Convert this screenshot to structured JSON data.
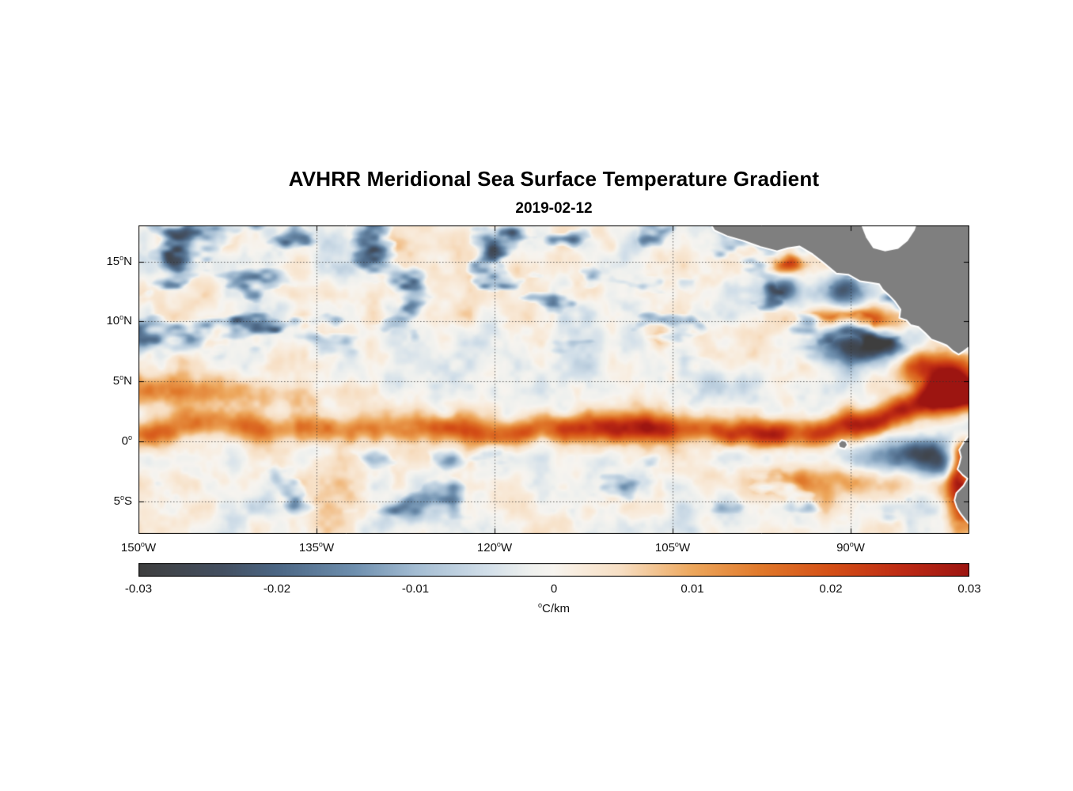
{
  "title": "AVHRR Meridional Sea Surface Temperature Gradient",
  "date": "2019-02-12",
  "chart_data": {
    "type": "heatmap",
    "title": "AVHRR Meridional Sea Surface Temperature Gradient",
    "subtitle": "2019-02-12",
    "lon_range": [
      -150,
      -80
    ],
    "lat_range": [
      -7.7,
      18
    ],
    "x_ticks": [
      {
        "lon": -150,
        "num": "150",
        "sup": "o",
        "hem": "W"
      },
      {
        "lon": -135,
        "num": "135",
        "sup": "o",
        "hem": "W"
      },
      {
        "lon": -120,
        "num": "120",
        "sup": "o",
        "hem": "W"
      },
      {
        "lon": -105,
        "num": "105",
        "sup": "o",
        "hem": "W"
      },
      {
        "lon": -90,
        "num": "90",
        "sup": "o",
        "hem": "W"
      }
    ],
    "y_ticks": [
      {
        "lat": 15,
        "num": "15",
        "sup": "o",
        "hem": "N"
      },
      {
        "lat": 10,
        "num": "10",
        "sup": "o",
        "hem": "N"
      },
      {
        "lat": 5,
        "num": "5",
        "sup": "o",
        "hem": "N"
      },
      {
        "lat": 0,
        "num": "0",
        "sup": "o",
        "hem": ""
      },
      {
        "lat": -5,
        "num": "5",
        "sup": "o",
        "hem": "S"
      }
    ],
    "grid": {
      "style": "dotted",
      "color": "rgba(45,45,45,0.75)"
    },
    "colorbar": {
      "min": -0.03,
      "max": 0.03,
      "ticks": [
        -0.03,
        -0.02,
        -0.01,
        0,
        0.01,
        0.02,
        0.03
      ],
      "tick_labels": [
        "-0.03",
        "-0.02",
        "-0.01",
        "0",
        "0.01",
        "0.02",
        "0.03"
      ],
      "label_sup": "o",
      "label_text": "C/km"
    },
    "colormap": [
      [
        0.0,
        "#3e3e3e"
      ],
      [
        0.1,
        "#434f60"
      ],
      [
        0.1667,
        "#4b6684"
      ],
      [
        0.26,
        "#6e8fae"
      ],
      [
        0.3333,
        "#a3bcd2"
      ],
      [
        0.42,
        "#d2dfe9"
      ],
      [
        0.47,
        "#eef0ee"
      ],
      [
        0.5,
        "#f7f4ef"
      ],
      [
        0.53,
        "#f8ecdd"
      ],
      [
        0.58,
        "#f7dfc4"
      ],
      [
        0.6667,
        "#eda75c"
      ],
      [
        0.75,
        "#e0782a"
      ],
      [
        0.8333,
        "#d44f16"
      ],
      [
        0.92,
        "#bd2a14"
      ],
      [
        1.0,
        "#9d1511"
      ]
    ],
    "colors": {
      "land": "#7f7f7f",
      "coastline": "#ffffff",
      "axis": "#000000",
      "background": "#ffffff"
    },
    "field": {
      "seed": 7,
      "mottle": {
        "amp": 0.007,
        "scale": 0.5
      },
      "mottle2": {
        "amp": 0.005,
        "scale_lon": 0.18,
        "scale_lat": 0.26
      },
      "north_blue": {
        "lat_start": 6,
        "lat_full": 9.5,
        "threshold": 0.56,
        "gain": 0.034,
        "scale_lon": 0.3,
        "scale_lat": 0.55
      },
      "south_blue": {
        "threshold": 0.6,
        "gain": 0.022,
        "scale_lon": 0.3,
        "scale_lat": 0.5
      },
      "equator_band": {
        "center": 1.0,
        "meander": 1.0,
        "meander_scale": 0.16,
        "sigma": 0.8,
        "amp_west": 0.015,
        "amp_east": 0.024,
        "ramp": [
          -128,
          -100
        ],
        "rise": 2.6,
        "rise_range": [
          -90,
          -80
        ]
      },
      "west_band": {
        "lat": 3.9,
        "amp": 0.012,
        "sigma": 0.95,
        "fade": [
          -150,
          -119
        ]
      },
      "blobs": [
        [
          -95.2,
          14.8,
          0.02,
          0.9,
          0.55
        ],
        [
          -89.5,
          10.1,
          0.026,
          2.8,
          0.7
        ],
        [
          -95.4,
          12.6,
          -0.02,
          1.1,
          0.8
        ],
        [
          -90.6,
          12.5,
          -0.018,
          1.2,
          0.9
        ],
        [
          -89.2,
          8.0,
          -0.028,
          2.6,
          1.1
        ],
        [
          -84.0,
          6.2,
          0.016,
          2.0,
          1.0
        ],
        [
          -81.3,
          5.2,
          0.024,
          1.4,
          1.4
        ],
        [
          -82.0,
          3.9,
          0.02,
          1.5,
          1.2
        ],
        [
          -92.0,
          -3.3,
          0.013,
          5.0,
          1.0
        ],
        [
          -86.0,
          -1.4,
          -0.018,
          2.4,
          0.9
        ],
        [
          -83.8,
          -0.6,
          -0.014,
          1.3,
          0.7
        ],
        [
          -82.3,
          -2.0,
          -0.02,
          1.4,
          0.9
        ],
        [
          -80.5,
          -1.0,
          0.018,
          0.7,
          0.8
        ],
        [
          -81.0,
          -2.6,
          0.02,
          0.7,
          1.0
        ],
        [
          -80.6,
          -5.3,
          0.026,
          1.0,
          1.9
        ]
      ]
    },
    "geography": {
      "land": [
        [
          [
            -102.0,
            18.5
          ],
          [
            -101.5,
            17.6
          ],
          [
            -100.4,
            17.1
          ],
          [
            -99.0,
            16.7
          ],
          [
            -97.6,
            16.2
          ],
          [
            -96.2,
            15.85
          ],
          [
            -95.3,
            16.1
          ],
          [
            -94.3,
            16.25
          ],
          [
            -93.2,
            15.6
          ],
          [
            -92.3,
            14.9
          ],
          [
            -91.2,
            14.0
          ],
          [
            -90.2,
            13.9
          ],
          [
            -89.2,
            13.35
          ],
          [
            -88.2,
            13.2
          ],
          [
            -87.6,
            13.1
          ],
          [
            -87.3,
            12.65
          ],
          [
            -86.8,
            12.2
          ],
          [
            -86.3,
            11.7
          ],
          [
            -85.8,
            11.0
          ],
          [
            -85.9,
            10.3
          ],
          [
            -85.3,
            10.1
          ],
          [
            -84.95,
            9.7
          ],
          [
            -84.3,
            9.55
          ],
          [
            -83.7,
            9.0
          ],
          [
            -83.2,
            8.5
          ],
          [
            -82.5,
            8.25
          ],
          [
            -81.9,
            8.0
          ],
          [
            -81.4,
            7.55
          ],
          [
            -80.9,
            7.25
          ],
          [
            -80.5,
            7.5
          ],
          [
            -80.1,
            7.8
          ],
          [
            -79.5,
            7.9
          ],
          [
            -79.5,
            18.5
          ]
        ],
        [
          [
            -79.5,
            0.9
          ],
          [
            -80.2,
            0.3
          ],
          [
            -80.55,
            -0.2
          ],
          [
            -80.85,
            -0.7
          ],
          [
            -80.7,
            -1.3
          ],
          [
            -80.85,
            -1.9
          ],
          [
            -81.0,
            -2.3
          ],
          [
            -80.55,
            -2.8
          ],
          [
            -80.15,
            -3.1
          ],
          [
            -80.5,
            -3.7
          ],
          [
            -81.1,
            -4.3
          ],
          [
            -81.25,
            -4.9
          ],
          [
            -81.05,
            -5.5
          ],
          [
            -80.75,
            -6.0
          ],
          [
            -80.35,
            -6.5
          ],
          [
            -79.9,
            -7.0
          ],
          [
            -79.5,
            -7.3
          ]
        ],
        [
          [
            -91.05,
            -0.15
          ],
          [
            -90.75,
            0.12
          ],
          [
            -90.4,
            0.02
          ],
          [
            -90.25,
            -0.3
          ],
          [
            -90.5,
            -0.62
          ],
          [
            -90.95,
            -0.5
          ]
        ]
      ],
      "sea_mask": [
        [
          [
            -89.3,
            18.5
          ],
          [
            -88.7,
            17.0
          ],
          [
            -88.1,
            16.1
          ],
          [
            -87.1,
            15.85
          ],
          [
            -86.0,
            16.05
          ],
          [
            -85.2,
            16.7
          ],
          [
            -84.6,
            17.6
          ],
          [
            -84.3,
            18.5
          ]
        ]
      ]
    }
  }
}
